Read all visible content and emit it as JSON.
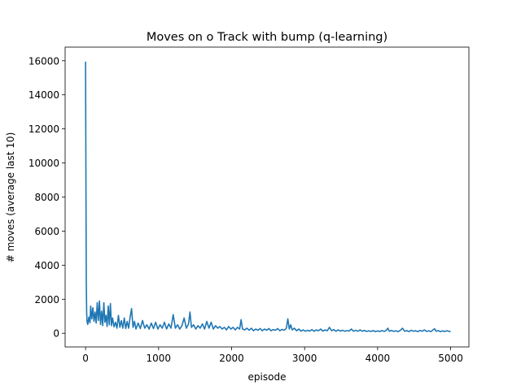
{
  "chart_data": {
    "type": "line",
    "title": "Moves on o Track with bump (q-learning)",
    "xlabel": "episode",
    "ylabel": "# moves (average last 10)",
    "xlim": [
      -280,
      5250
    ],
    "ylim": [
      -800,
      16800
    ],
    "xticks": [
      0,
      1000,
      2000,
      3000,
      4000,
      5000
    ],
    "yticks": [
      0,
      2000,
      4000,
      6000,
      8000,
      10000,
      12000,
      14000,
      16000
    ],
    "grid": false,
    "legend": "none",
    "series": [
      {
        "color": "#1f77b4",
        "points": [
          [
            0,
            15950
          ],
          [
            5,
            9000
          ],
          [
            10,
            3000
          ],
          [
            15,
            1200
          ],
          [
            20,
            700
          ],
          [
            30,
            520
          ],
          [
            45,
            950
          ],
          [
            60,
            620
          ],
          [
            70,
            1600
          ],
          [
            85,
            850
          ],
          [
            100,
            1500
          ],
          [
            115,
            700
          ],
          [
            130,
            1250
          ],
          [
            145,
            600
          ],
          [
            160,
            1800
          ],
          [
            175,
            750
          ],
          [
            190,
            1900
          ],
          [
            205,
            520
          ],
          [
            220,
            1300
          ],
          [
            235,
            450
          ],
          [
            250,
            1800
          ],
          [
            265,
            650
          ],
          [
            280,
            1050
          ],
          [
            295,
            400
          ],
          [
            310,
            1600
          ],
          [
            325,
            500
          ],
          [
            340,
            1750
          ],
          [
            355,
            450
          ],
          [
            370,
            900
          ],
          [
            390,
            380
          ],
          [
            410,
            650
          ],
          [
            430,
            300
          ],
          [
            450,
            1050
          ],
          [
            470,
            350
          ],
          [
            490,
            750
          ],
          [
            510,
            300
          ],
          [
            530,
            900
          ],
          [
            550,
            280
          ],
          [
            570,
            700
          ],
          [
            590,
            300
          ],
          [
            610,
            950
          ],
          [
            630,
            1450
          ],
          [
            650,
            350
          ],
          [
            670,
            700
          ],
          [
            690,
            250
          ],
          [
            720,
            600
          ],
          [
            750,
            280
          ],
          [
            780,
            750
          ],
          [
            810,
            300
          ],
          [
            840,
            500
          ],
          [
            870,
            250
          ],
          [
            900,
            600
          ],
          [
            930,
            280
          ],
          [
            960,
            650
          ],
          [
            990,
            250
          ],
          [
            1020,
            500
          ],
          [
            1050,
            300
          ],
          [
            1080,
            650
          ],
          [
            1110,
            250
          ],
          [
            1140,
            550
          ],
          [
            1170,
            300
          ],
          [
            1200,
            1100
          ],
          [
            1230,
            300
          ],
          [
            1260,
            500
          ],
          [
            1290,
            250
          ],
          [
            1320,
            450
          ],
          [
            1350,
            900
          ],
          [
            1380,
            300
          ],
          [
            1410,
            550
          ],
          [
            1430,
            1250
          ],
          [
            1450,
            350
          ],
          [
            1480,
            500
          ],
          [
            1510,
            250
          ],
          [
            1540,
            450
          ],
          [
            1570,
            300
          ],
          [
            1600,
            550
          ],
          [
            1630,
            250
          ],
          [
            1660,
            700
          ],
          [
            1690,
            300
          ],
          [
            1720,
            650
          ],
          [
            1750,
            250
          ],
          [
            1780,
            450
          ],
          [
            1810,
            300
          ],
          [
            1840,
            400
          ],
          [
            1870,
            250
          ],
          [
            1900,
            350
          ],
          [
            1930,
            200
          ],
          [
            1960,
            400
          ],
          [
            1990,
            250
          ],
          [
            2020,
            350
          ],
          [
            2050,
            200
          ],
          [
            2080,
            350
          ],
          [
            2110,
            250
          ],
          [
            2130,
            800
          ],
          [
            2150,
            250
          ],
          [
            2180,
            200
          ],
          [
            2210,
            300
          ],
          [
            2240,
            180
          ],
          [
            2270,
            300
          ],
          [
            2300,
            150
          ],
          [
            2330,
            250
          ],
          [
            2360,
            180
          ],
          [
            2390,
            280
          ],
          [
            2420,
            150
          ],
          [
            2450,
            250
          ],
          [
            2480,
            180
          ],
          [
            2510,
            280
          ],
          [
            2540,
            150
          ],
          [
            2570,
            220
          ],
          [
            2600,
            180
          ],
          [
            2630,
            280
          ],
          [
            2660,
            150
          ],
          [
            2690,
            230
          ],
          [
            2720,
            180
          ],
          [
            2750,
            300
          ],
          [
            2770,
            850
          ],
          [
            2790,
            250
          ],
          [
            2810,
            500
          ],
          [
            2830,
            200
          ],
          [
            2860,
            300
          ],
          [
            2890,
            150
          ],
          [
            2920,
            250
          ],
          [
            2950,
            130
          ],
          [
            2980,
            200
          ],
          [
            3010,
            120
          ],
          [
            3040,
            180
          ],
          [
            3070,
            130
          ],
          [
            3100,
            220
          ],
          [
            3130,
            120
          ],
          [
            3160,
            200
          ],
          [
            3190,
            150
          ],
          [
            3220,
            250
          ],
          [
            3250,
            130
          ],
          [
            3280,
            200
          ],
          [
            3310,
            150
          ],
          [
            3340,
            350
          ],
          [
            3370,
            150
          ],
          [
            3400,
            220
          ],
          [
            3430,
            120
          ],
          [
            3460,
            200
          ],
          [
            3490,
            130
          ],
          [
            3520,
            180
          ],
          [
            3550,
            120
          ],
          [
            3580,
            160
          ],
          [
            3610,
            130
          ],
          [
            3640,
            250
          ],
          [
            3670,
            120
          ],
          [
            3700,
            180
          ],
          [
            3730,
            120
          ],
          [
            3760,
            200
          ],
          [
            3790,
            120
          ],
          [
            3820,
            170
          ],
          [
            3850,
            110
          ],
          [
            3880,
            150
          ],
          [
            3910,
            110
          ],
          [
            3940,
            160
          ],
          [
            3970,
            100
          ],
          [
            4000,
            140
          ],
          [
            4030,
            110
          ],
          [
            4060,
            160
          ],
          [
            4090,
            110
          ],
          [
            4120,
            180
          ],
          [
            4140,
            300
          ],
          [
            4160,
            120
          ],
          [
            4190,
            170
          ],
          [
            4220,
            110
          ],
          [
            4250,
            150
          ],
          [
            4280,
            100
          ],
          [
            4310,
            170
          ],
          [
            4340,
            300
          ],
          [
            4370,
            120
          ],
          [
            4400,
            160
          ],
          [
            4430,
            100
          ],
          [
            4460,
            180
          ],
          [
            4490,
            120
          ],
          [
            4520,
            150
          ],
          [
            4550,
            100
          ],
          [
            4580,
            170
          ],
          [
            4610,
            120
          ],
          [
            4640,
            200
          ],
          [
            4670,
            110
          ],
          [
            4700,
            150
          ],
          [
            4730,
            100
          ],
          [
            4760,
            200
          ],
          [
            4780,
            270
          ],
          [
            4800,
            120
          ],
          [
            4830,
            160
          ],
          [
            4860,
            100
          ],
          [
            4890,
            140
          ],
          [
            4920,
            110
          ],
          [
            4950,
            150
          ],
          [
            4980,
            110
          ],
          [
            5000,
            110
          ]
        ]
      }
    ]
  }
}
